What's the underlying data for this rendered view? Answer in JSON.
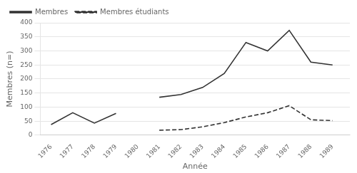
{
  "chart_data": {
    "type": "line",
    "x": [
      1976,
      1977,
      1978,
      1979,
      1980,
      1981,
      1982,
      1983,
      1984,
      1985,
      1986,
      1987,
      1988,
      1989
    ],
    "series": [
      {
        "name": "Membres",
        "color": "#333333",
        "line_style": "solid",
        "values": [
          38,
          80,
          43,
          78,
          null,
          135,
          145,
          170,
          220,
          330,
          300,
          373,
          260,
          250
        ]
      },
      {
        "name": "Membres étudiants",
        "color": "#333333",
        "line_style": "dashed",
        "values": [
          null,
          null,
          null,
          null,
          null,
          18,
          20,
          30,
          45,
          65,
          80,
          105,
          55,
          52
        ]
      }
    ],
    "xlabel": "Année",
    "ylabel": "Membres (n=)",
    "xlim": [
      1975.5,
      1989.8
    ],
    "xticks": [
      1976,
      1977,
      1978,
      1979,
      1980,
      1981,
      1982,
      1983,
      1984,
      1985,
      1986,
      1987,
      1988,
      1989
    ],
    "ylim": [
      0,
      400
    ],
    "yticks": [
      0,
      50,
      100,
      150,
      200,
      250,
      300,
      350,
      400
    ],
    "grid": "y",
    "legend": "upper left"
  }
}
